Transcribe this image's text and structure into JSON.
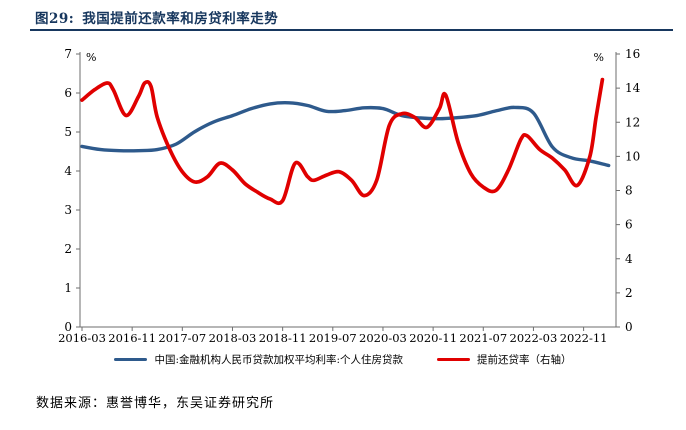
{
  "figure": {
    "label": "图29:",
    "title": "我国提前还款率和房贷利率走势"
  },
  "source_note": "数据来源：惠誉博华，东吴证券研究所",
  "colors": {
    "title_navy": "#17375E",
    "divider": "#17375E",
    "axis_line": "#6E6E6E",
    "tick_text": "#000000",
    "line_blue": "#2E5A8C",
    "line_red": "#E00000"
  },
  "chart_data": {
    "type": "line",
    "title": "我国提前还款率和房贷利率走势",
    "grid": false,
    "legend_position": "bottom",
    "left_axis": {
      "unit": "%",
      "min": 0,
      "max": 7,
      "tick_step": 1
    },
    "right_axis": {
      "unit": "%",
      "min": 0,
      "max": 16,
      "tick_step": 2
    },
    "x_ticks": [
      "2016-03",
      "2016-11",
      "2017-07",
      "2018-03",
      "2018-11",
      "2019-07",
      "2020-03",
      "2020-11",
      "2021-07",
      "2022-03",
      "2022-11"
    ],
    "series": [
      {
        "name": "中国:金融机构人民币贷款加权平均利率:个人住房贷款",
        "axis": "left",
        "color": "#2E5A8C",
        "x": [
          "2016-03",
          "2016-06",
          "2016-09",
          "2016-12",
          "2017-03",
          "2017-06",
          "2017-09",
          "2017-12",
          "2018-03",
          "2018-06",
          "2018-09",
          "2018-12",
          "2019-03",
          "2019-06",
          "2019-09",
          "2019-12",
          "2020-03",
          "2020-06",
          "2020-09",
          "2020-12",
          "2021-03",
          "2021-06",
          "2021-09",
          "2021-12",
          "2022-03",
          "2022-06",
          "2022-09",
          "2022-12",
          "2023-03"
        ],
        "values": [
          4.63,
          4.55,
          4.52,
          4.52,
          4.55,
          4.69,
          5.01,
          5.26,
          5.42,
          5.6,
          5.72,
          5.75,
          5.68,
          5.53,
          5.55,
          5.62,
          5.6,
          5.42,
          5.36,
          5.34,
          5.37,
          5.42,
          5.54,
          5.63,
          5.49,
          4.62,
          4.34,
          4.26,
          4.14
        ]
      },
      {
        "name": "提前还贷率（右轴）",
        "axis": "right",
        "color": "#E00000",
        "x": [
          "2016-03",
          "2016-05",
          "2016-07",
          "2016-08",
          "2016-10",
          "2016-12",
          "2017-01",
          "2017-02",
          "2017-03",
          "2017-05",
          "2017-07",
          "2017-09",
          "2017-11",
          "2018-01",
          "2018-03",
          "2018-05",
          "2018-07",
          "2018-09",
          "2018-11",
          "2019-01",
          "2019-03",
          "2019-04",
          "2019-06",
          "2019-08",
          "2019-10",
          "2019-12",
          "2020-02",
          "2020-04",
          "2020-06",
          "2020-08",
          "2020-10",
          "2020-12",
          "2021-01",
          "2021-03",
          "2021-05",
          "2021-07",
          "2021-09",
          "2021-11",
          "2022-01",
          "2022-02",
          "2022-04",
          "2022-06",
          "2022-08",
          "2022-10",
          "2022-12",
          "2023-01",
          "2023-02"
        ],
        "values": [
          13.3,
          13.9,
          14.3,
          13.9,
          12.4,
          13.5,
          14.3,
          14.1,
          12.3,
          10.4,
          9.1,
          8.5,
          8.8,
          9.6,
          9.2,
          8.4,
          7.9,
          7.5,
          7.4,
          9.6,
          8.8,
          8.6,
          8.9,
          9.1,
          8.6,
          7.7,
          8.6,
          11.8,
          12.5,
          12.3,
          11.7,
          12.8,
          13.6,
          10.8,
          9.0,
          8.2,
          8.0,
          9.2,
          11.0,
          11.2,
          10.4,
          9.9,
          9.2,
          8.3,
          10.0,
          12.3,
          14.5
        ]
      }
    ]
  }
}
